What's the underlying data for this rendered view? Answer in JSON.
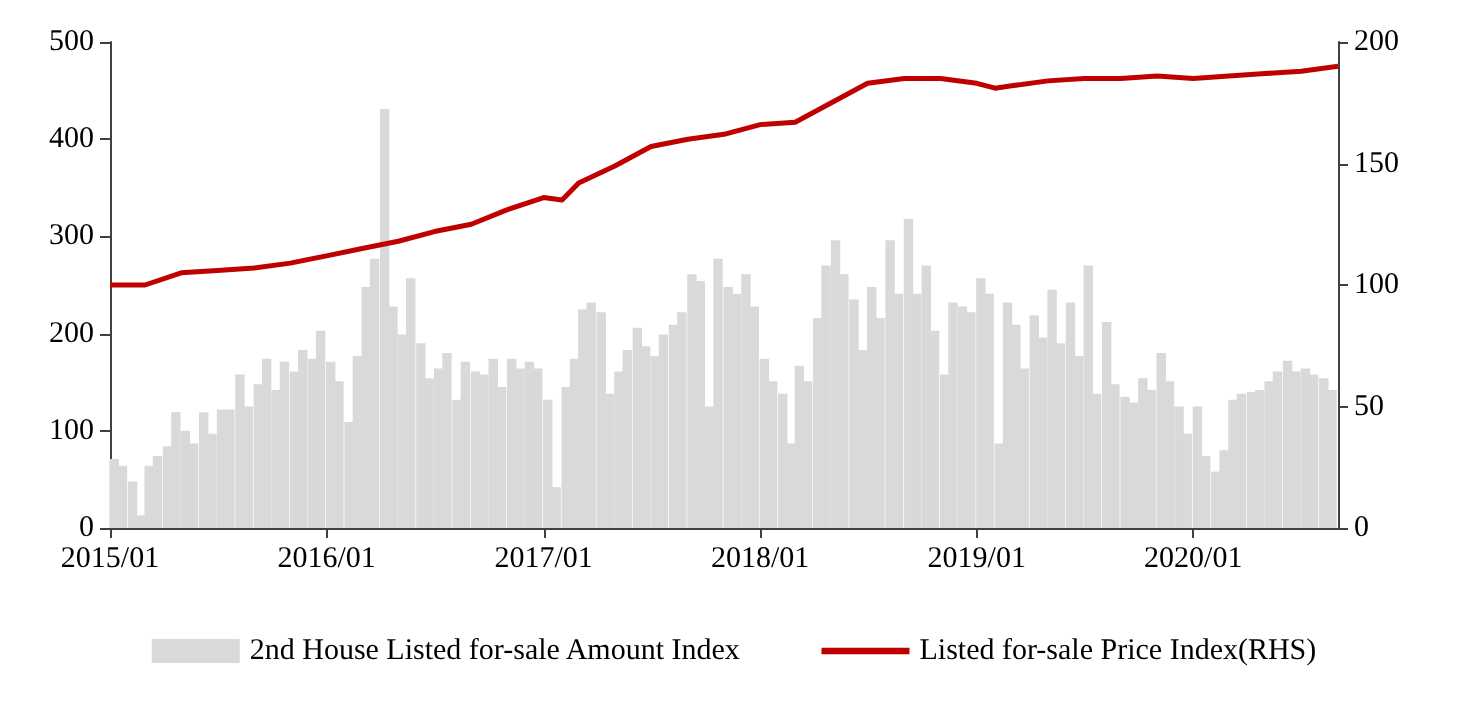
{
  "chart_data": {
    "type": "bar",
    "legend": "bottom",
    "grid": false,
    "xlim": [
      "2015-01-01",
      "2020-09-01"
    ],
    "xticks": [
      {
        "value": "2015-01",
        "label": "2015/01"
      },
      {
        "value": "2016-01",
        "label": "2016/01"
      },
      {
        "value": "2017-01",
        "label": "2017/01"
      },
      {
        "value": "2018-01",
        "label": "2018/01"
      },
      {
        "value": "2019-01",
        "label": "2019/01"
      },
      {
        "value": "2020-01",
        "label": "2020/01"
      }
    ],
    "ylim": [
      0,
      500
    ],
    "yticks": [
      0,
      100,
      200,
      300,
      400,
      500
    ],
    "y2lim": [
      0,
      200
    ],
    "y2ticks": [
      0,
      50,
      100,
      150,
      200
    ],
    "series": [
      {
        "name": "2nd House Listed for-sale Amount Index",
        "color": "#d9d9d9",
        "x": [
          "2015-01-08",
          "2015-01-22",
          "2015-02-08",
          "2015-02-22",
          "2015-03-08",
          "2015-03-22",
          "2015-04-08",
          "2015-04-22",
          "2015-05-08",
          "2015-05-22",
          "2015-06-08",
          "2015-06-22",
          "2015-07-08",
          "2015-07-22",
          "2015-08-08",
          "2015-08-22",
          "2015-09-08",
          "2015-09-22",
          "2015-10-08",
          "2015-10-22",
          "2015-11-08",
          "2015-11-22",
          "2015-12-08",
          "2015-12-22",
          "2016-01-08",
          "2016-01-22",
          "2016-02-08",
          "2016-02-22",
          "2016-03-08",
          "2016-03-22",
          "2016-04-08",
          "2016-04-22",
          "2016-05-08",
          "2016-05-22",
          "2016-06-08",
          "2016-06-22",
          "2016-07-08",
          "2016-07-22",
          "2016-08-08",
          "2016-08-22",
          "2016-09-08",
          "2016-09-22",
          "2016-10-08",
          "2016-10-22",
          "2016-11-08",
          "2016-11-22",
          "2016-12-08",
          "2016-12-22",
          "2017-01-08",
          "2017-01-22",
          "2017-02-08",
          "2017-02-22",
          "2017-03-08",
          "2017-03-22",
          "2017-04-08",
          "2017-04-22",
          "2017-05-08",
          "2017-05-22",
          "2017-06-08",
          "2017-06-22",
          "2017-07-08",
          "2017-07-22",
          "2017-08-08",
          "2017-08-22",
          "2017-09-08",
          "2017-09-22",
          "2017-10-08",
          "2017-10-22",
          "2017-11-08",
          "2017-11-22",
          "2017-12-08",
          "2017-12-22",
          "2018-01-08",
          "2018-01-22",
          "2018-02-08",
          "2018-02-22",
          "2018-03-08",
          "2018-03-22",
          "2018-04-08",
          "2018-04-22",
          "2018-05-08",
          "2018-05-22",
          "2018-06-08",
          "2018-06-22",
          "2018-07-08",
          "2018-07-22",
          "2018-08-08",
          "2018-08-22",
          "2018-09-08",
          "2018-09-22",
          "2018-10-08",
          "2018-10-22",
          "2018-11-08",
          "2018-11-22",
          "2018-12-08",
          "2018-12-22",
          "2019-01-08",
          "2019-01-22",
          "2019-02-08",
          "2019-02-22",
          "2019-03-08",
          "2019-03-22",
          "2019-04-08",
          "2019-04-22",
          "2019-05-08",
          "2019-05-22",
          "2019-06-08",
          "2019-06-22",
          "2019-07-08",
          "2019-07-22",
          "2019-08-08",
          "2019-08-22",
          "2019-09-08",
          "2019-09-22",
          "2019-10-08",
          "2019-10-22",
          "2019-11-08",
          "2019-11-22",
          "2019-12-08",
          "2019-12-22",
          "2020-01-08",
          "2020-01-22",
          "2020-02-08",
          "2020-02-22",
          "2020-03-08",
          "2020-03-22",
          "2020-04-08",
          "2020-04-22",
          "2020-05-08",
          "2020-05-22",
          "2020-06-08",
          "2020-06-22",
          "2020-07-08",
          "2020-07-22",
          "2020-08-08",
          "2020-08-22"
        ],
        "values": [
          71,
          64,
          48,
          13,
          64,
          74,
          84,
          119,
          100,
          87,
          119,
          97,
          122,
          122,
          158,
          125,
          148,
          174,
          142,
          171,
          161,
          183,
          174,
          203,
          171,
          151,
          109,
          177,
          248,
          277,
          431,
          228,
          199,
          257,
          190,
          154,
          164,
          180,
          132,
          171,
          161,
          158,
          174,
          145,
          174,
          164,
          171,
          164,
          132,
          42,
          145,
          174,
          225,
          232,
          222,
          138,
          161,
          183,
          206,
          187,
          177,
          199,
          209,
          222,
          261,
          254,
          125,
          277,
          248,
          241,
          261,
          228,
          174,
          151,
          138,
          87,
          167,
          151,
          216,
          270,
          296,
          261,
          235,
          183,
          248,
          216,
          296,
          241,
          318,
          241,
          270,
          203,
          158,
          232,
          228,
          222,
          257,
          241,
          87,
          232,
          209,
          164,
          219,
          196,
          245,
          190,
          232,
          177,
          270,
          138,
          212,
          148,
          135,
          129,
          154,
          142,
          180,
          151,
          125,
          97,
          125,
          74,
          58,
          80,
          132,
          138,
          140,
          142,
          151,
          161,
          172,
          161,
          164,
          158,
          154,
          142
        ]
      },
      {
        "name": "Listed for-sale Price Index(RHS)",
        "type": "line",
        "axis": "y2",
        "color": "#c00000",
        "marker": "none",
        "line_style": "solid",
        "x": [
          "2015-01",
          "2015-03",
          "2015-05",
          "2015-07",
          "2015-09",
          "2015-11",
          "2016-01",
          "2016-03",
          "2016-05",
          "2016-07",
          "2016-09",
          "2016-11",
          "2017-01",
          "2017-02",
          "2017-03",
          "2017-05",
          "2017-07",
          "2017-09",
          "2017-11",
          "2018-01",
          "2018-03",
          "2018-05",
          "2018-07",
          "2018-09",
          "2018-11",
          "2019-01",
          "2019-02",
          "2019-03",
          "2019-05",
          "2019-07",
          "2019-09",
          "2019-11",
          "2020-01",
          "2020-03",
          "2020-05",
          "2020-07",
          "2020-09"
        ],
        "values": [
          100,
          100,
          105,
          106,
          107,
          109,
          112,
          115,
          118,
          122,
          125,
          131,
          136,
          135,
          142,
          149,
          157,
          160,
          162,
          166,
          167,
          175,
          183,
          185,
          185,
          183,
          181,
          182,
          184,
          185,
          185,
          186,
          185,
          186,
          187,
          188,
          190
        ]
      }
    ]
  }
}
